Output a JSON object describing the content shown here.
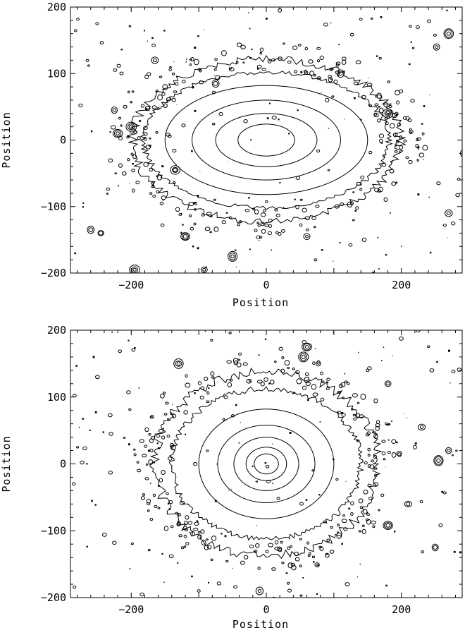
{
  "chart_data": [
    {
      "type": "contour",
      "xlabel": "Position",
      "ylabel": "Position",
      "xlim": [
        -290,
        290
      ],
      "ylim": [
        -200,
        200
      ],
      "xticks": [
        -200,
        0,
        200
      ],
      "yticks": [
        -200,
        -100,
        0,
        100,
        200
      ],
      "center": [
        0,
        0
      ],
      "contour_levels": [
        {
          "semi_major": 42,
          "semi_minor": 24
        },
        {
          "semi_major": 75,
          "semi_minor": 40
        },
        {
          "semi_major": 110,
          "semi_minor": 60
        },
        {
          "semi_major": 150,
          "semi_minor": 82
        },
        {
          "semi_major": 182,
          "semi_minor": 102
        },
        {
          "semi_major": 198,
          "semi_minor": 122
        }
      ],
      "compact_sources": [
        [
          -275,
          52
        ],
        [
          -225,
          45
        ],
        [
          -220,
          10
        ],
        [
          -200,
          20
        ],
        [
          -195,
          -25
        ],
        [
          -165,
          120
        ],
        [
          -135,
          -45
        ],
        [
          -120,
          -145
        ],
        [
          -92,
          -195
        ],
        [
          -195,
          -195
        ],
        [
          -260,
          -135
        ],
        [
          -245,
          -140
        ],
        [
          5,
          -140
        ],
        [
          90,
          60
        ],
        [
          110,
          100
        ],
        [
          145,
          -150
        ],
        [
          255,
          -65
        ],
        [
          252,
          140
        ],
        [
          270,
          160
        ],
        [
          180,
          40
        ],
        [
          295,
          -20
        ],
        [
          270,
          -110
        ],
        [
          20,
          195
        ],
        [
          -75,
          85
        ],
        [
          60,
          -145
        ],
        [
          -50,
          -175
        ]
      ],
      "grid": false
    },
    {
      "type": "contour",
      "xlabel": "Position",
      "ylabel": "Position",
      "xlim": [
        -290,
        290
      ],
      "ylim": [
        -200,
        200
      ],
      "xticks": [
        -200,
        0,
        200
      ],
      "yticks": [
        -200,
        -100,
        0,
        100,
        200
      ],
      "center": [
        0,
        0
      ],
      "contour_levels": [
        {
          "semi_major": 18,
          "semi_minor": 15
        },
        {
          "semi_major": 30,
          "semi_minor": 25
        },
        {
          "semi_major": 48,
          "semi_minor": 40
        },
        {
          "semi_major": 72,
          "semi_minor": 58
        },
        {
          "semi_major": 100,
          "semi_minor": 82
        },
        {
          "semi_major": 140,
          "semi_minor": 112
        },
        {
          "semi_major": 165,
          "semi_minor": 138
        }
      ],
      "compact_sources": [
        [
          -225,
          -118
        ],
        [
          -230,
          45
        ],
        [
          -130,
          150
        ],
        [
          -80,
          135
        ],
        [
          -60,
          100
        ],
        [
          55,
          160
        ],
        [
          60,
          175
        ],
        [
          230,
          55
        ],
        [
          220,
          25
        ],
        [
          255,
          5
        ],
        [
          180,
          -92
        ],
        [
          -35,
          -148
        ],
        [
          250,
          -125
        ],
        [
          -250,
          130
        ],
        [
          150,
          140
        ],
        [
          180,
          120
        ],
        [
          245,
          140
        ],
        [
          -170,
          20
        ],
        [
          120,
          -180
        ],
        [
          -100,
          -190
        ],
        [
          -10,
          -190
        ],
        [
          270,
          20
        ],
        [
          -285,
          -30
        ],
        [
          210,
          -60
        ]
      ],
      "grid": false
    }
  ]
}
